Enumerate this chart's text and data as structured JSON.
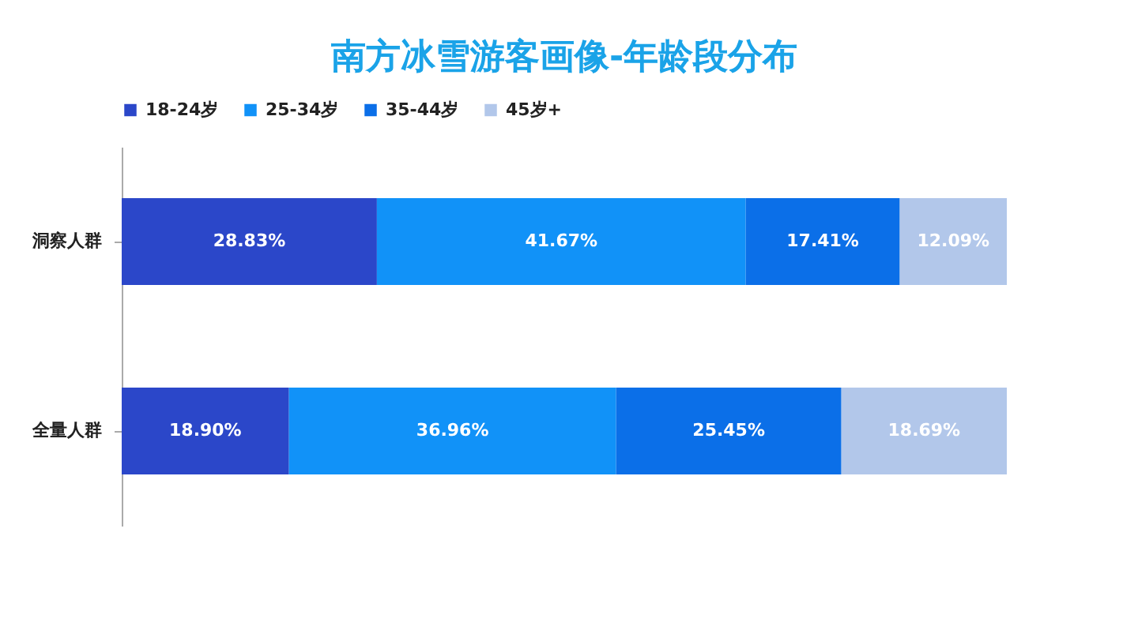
{
  "chart_data": {
    "type": "bar",
    "orientation": "horizontal",
    "stacked": true,
    "title": "南方冰雪游客画像-年龄段分布",
    "categories": [
      "洞察人群",
      "全量人群"
    ],
    "series": [
      {
        "name": "18-24岁",
        "color": "#2b47c9",
        "values": [
          28.83,
          18.9
        ],
        "value_labels": [
          "28.83%",
          "18.90%"
        ]
      },
      {
        "name": "25-34岁",
        "color": "#1192f8",
        "values": [
          41.67,
          36.96
        ],
        "value_labels": [
          "41.67%",
          "36.96%"
        ]
      },
      {
        "name": "35-44岁",
        "color": "#0b6fe8",
        "values": [
          17.41,
          25.45
        ],
        "value_labels": [
          "17.41%",
          "25.45%"
        ]
      },
      {
        "name": "45岁+",
        "color": "#b2c7ea",
        "values": [
          12.09,
          18.69
        ],
        "value_labels": [
          "12.09%",
          "18.69%"
        ]
      }
    ],
    "xlim": [
      0,
      100
    ],
    "tick_labels": "y",
    "legend": "top",
    "grid": false
  }
}
